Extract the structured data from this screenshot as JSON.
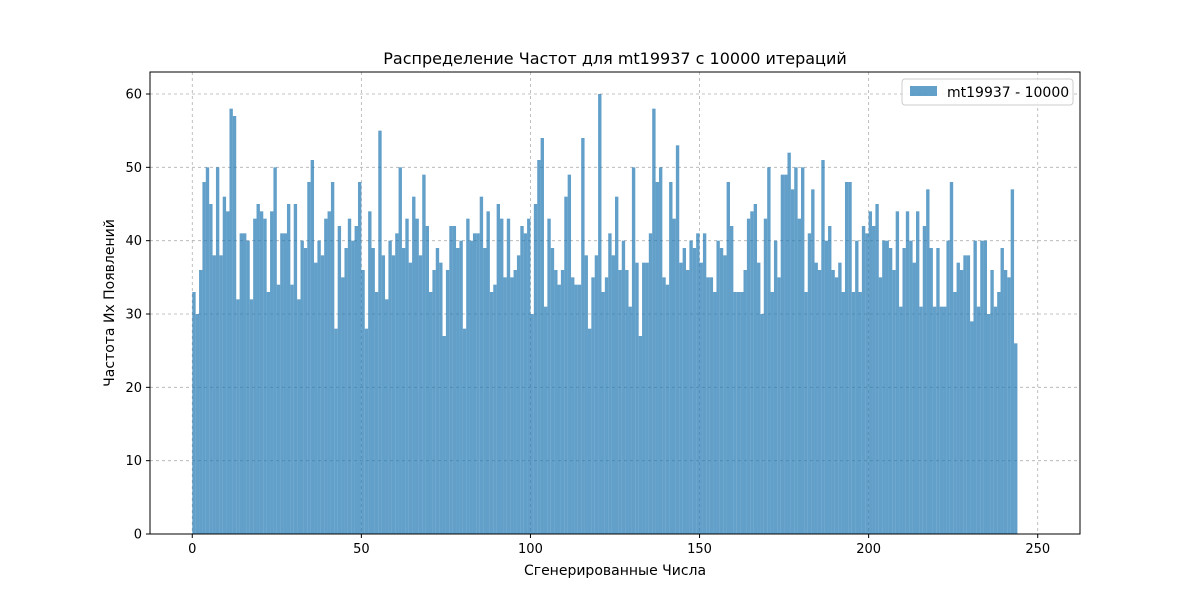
{
  "chart_data": {
    "type": "bar",
    "title": "Распределение Частот для mt19937 с 10000 итераций",
    "xlabel": "Сгенерированные Числа",
    "ylabel": "Частота Их Появлений",
    "xlim": [
      -12.5,
      262.5
    ],
    "ylim": [
      0,
      63
    ],
    "xticks": [
      0,
      50,
      100,
      150,
      200,
      250
    ],
    "yticks": [
      0,
      10,
      20,
      30,
      40,
      50,
      60
    ],
    "grid": true,
    "legend_position": "top-right",
    "bar_color": "#1f77b4",
    "bar_alpha": 0.7,
    "series": [
      {
        "name": "mt19937 - 10000",
        "x_start": 0,
        "bin_width": 1,
        "values": [
          33,
          30,
          36,
          48,
          50,
          45,
          38,
          50,
          38,
          46,
          44,
          58,
          57,
          32,
          41,
          41,
          40,
          32,
          43,
          45,
          44,
          43,
          33,
          44,
          50,
          34,
          41,
          41,
          45,
          34,
          45,
          32,
          40,
          39,
          48,
          51,
          37,
          40,
          38,
          43,
          44,
          48,
          28,
          42,
          35,
          39,
          43,
          40,
          42,
          48,
          36,
          28,
          44,
          39,
          33,
          55,
          38,
          32,
          40,
          38,
          41,
          50,
          39,
          43,
          37,
          46,
          43,
          38,
          49,
          42,
          33,
          36,
          39,
          37,
          27,
          36,
          42,
          42,
          39,
          40,
          28,
          43,
          40,
          41,
          41,
          46,
          39,
          44,
          33,
          34,
          45,
          43,
          35,
          43,
          35,
          36,
          38,
          42,
          41,
          43,
          30,
          45,
          51,
          54,
          31,
          43,
          39,
          36,
          34,
          36,
          46,
          49,
          35,
          34,
          34,
          54,
          38,
          28,
          35,
          38,
          60,
          33,
          35,
          41,
          38,
          46,
          36,
          40,
          36,
          31,
          50,
          37,
          27,
          37,
          37,
          41,
          58,
          48,
          50,
          35,
          34,
          48,
          43,
          53,
          37,
          39,
          36,
          40,
          39,
          41,
          37,
          41,
          35,
          35,
          33,
          40,
          39,
          38,
          48,
          42,
          33,
          33,
          33,
          36,
          43,
          44,
          45,
          37,
          30,
          43,
          50,
          33,
          40,
          35,
          49,
          49,
          52,
          47,
          50,
          43,
          50,
          33,
          41,
          47,
          37,
          36,
          51,
          40,
          42,
          36,
          35,
          37,
          33,
          48,
          48,
          33,
          40,
          33,
          42,
          41,
          44,
          42,
          45,
          35,
          40,
          40,
          39,
          36,
          44,
          31,
          39,
          44,
          40,
          37,
          44,
          31,
          42,
          47,
          39,
          31,
          39,
          31,
          31,
          40,
          48,
          33,
          37,
          36,
          38,
          38,
          29,
          40,
          31,
          40,
          40,
          30,
          36,
          31,
          33,
          39,
          36,
          35,
          47,
          26
        ]
      }
    ]
  }
}
